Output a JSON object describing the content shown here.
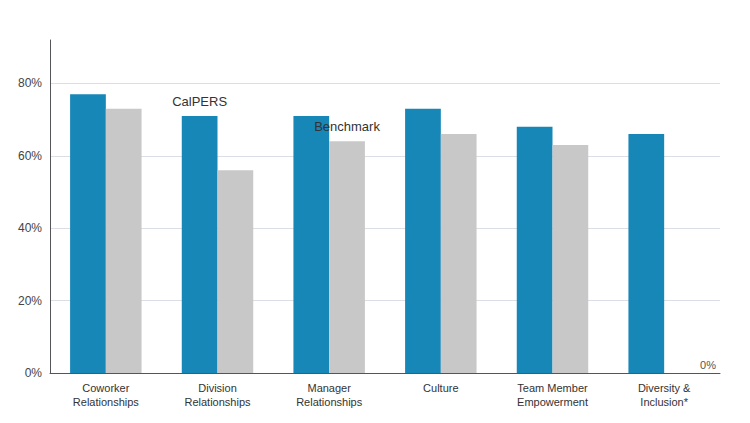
{
  "chart_data": {
    "type": "bar",
    "categories": [
      "Coworker\nRelationships",
      "Division\nRelationships",
      "Manager\nRelationships",
      "Culture",
      "Team Member\nEmpowerment",
      "Diversity &\nInclusion*"
    ],
    "series": [
      {
        "name": "CalPERS",
        "color": "#1787b8",
        "values": [
          0.77,
          0.71,
          0.71,
          0.73,
          0.68,
          0.66
        ]
      },
      {
        "name": "Benchmark",
        "color": "#c8c8c8",
        "values": [
          0.73,
          0.56,
          0.64,
          0.66,
          0.63,
          null
        ]
      }
    ],
    "ylim": [
      0,
      0.92
    ],
    "yticks": [
      {
        "value": 0.0,
        "label": "0%"
      },
      {
        "value": 0.2,
        "label": "20%"
      },
      {
        "value": 0.4,
        "label": "40%"
      },
      {
        "value": 0.6,
        "label": "60%"
      },
      {
        "value": 0.8,
        "label": "80%"
      }
    ],
    "grid": true,
    "annotations": [
      {
        "text": "CalPERS",
        "series": "CalPERS",
        "category": "Division\nRelationships"
      },
      {
        "text": "Benchmark",
        "series": "Benchmark",
        "category": "Manager\nRelationships"
      },
      {
        "text": "0%"
      }
    ]
  }
}
